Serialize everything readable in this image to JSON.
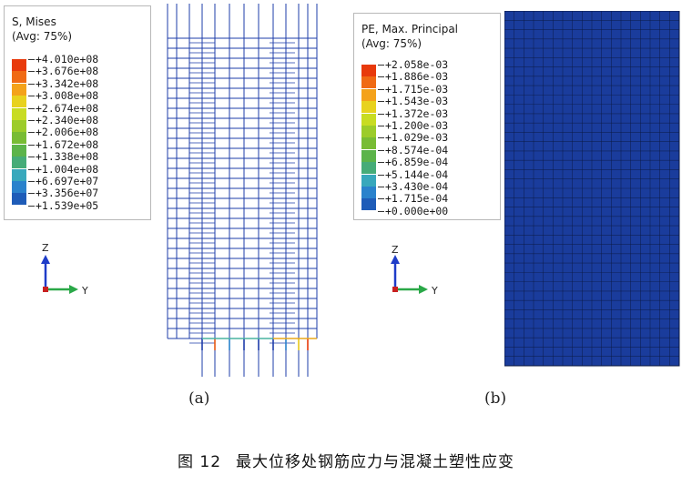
{
  "panel_a": {
    "legend": {
      "title_line1": "S, Mises",
      "title_line2": "(Avg: 75%)",
      "values": [
        "+4.010e+08",
        "+3.676e+08",
        "+3.342e+08",
        "+3.008e+08",
        "+2.674e+08",
        "+2.340e+08",
        "+2.006e+08",
        "+1.672e+08",
        "+1.338e+08",
        "+1.004e+08",
        "+6.697e+07",
        "+3.356e+07",
        "+1.539e+05"
      ],
      "colors": [
        "#e83a0c",
        "#f06a14",
        "#f4a21a",
        "#e8d21e",
        "#c8dc22",
        "#9ccc2a",
        "#78bc34",
        "#5cb44a",
        "#46ac78",
        "#38a8bc",
        "#2a82cc",
        "#1e5cb8",
        "#1a3c9c"
      ]
    },
    "triad": {
      "z": "Z",
      "y": "Y"
    },
    "label": "(a)"
  },
  "panel_b": {
    "legend": {
      "title_line1": "PE, Max. Principal",
      "title_line2": "(Avg: 75%)",
      "values": [
        "+2.058e-03",
        "+1.886e-03",
        "+1.715e-03",
        "+1.543e-03",
        "+1.372e-03",
        "+1.200e-03",
        "+1.029e-03",
        "+8.574e-04",
        "+6.859e-04",
        "+5.144e-04",
        "+3.430e-04",
        "+1.715e-04",
        "+0.000e+00"
      ],
      "colors": [
        "#e83a0c",
        "#f06a14",
        "#f4a21a",
        "#e8d21e",
        "#c8dc22",
        "#9ccc2a",
        "#78bc34",
        "#5cb44a",
        "#46ac78",
        "#38a8bc",
        "#2a82cc",
        "#1e5cb8",
        "#1a3c9c"
      ]
    },
    "triad": {
      "z": "Z",
      "y": "Y"
    },
    "label": "(b)"
  },
  "caption": {
    "figure_number": "图 12",
    "text": "最大位移处钢筋应力与混凝土塑性应变"
  }
}
